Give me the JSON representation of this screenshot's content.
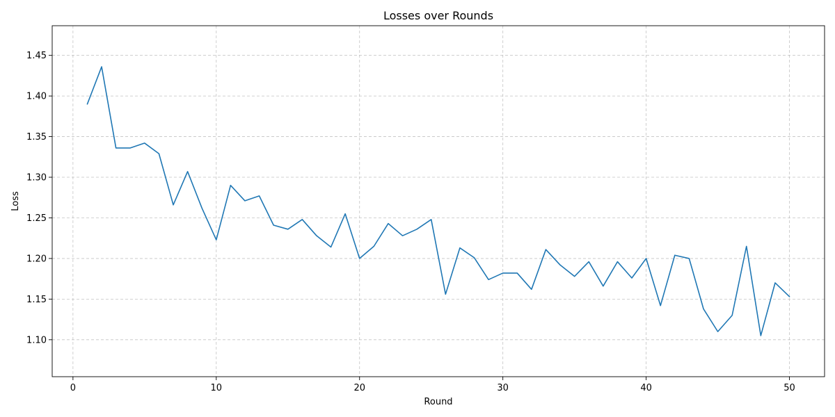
{
  "chart_data": {
    "type": "line",
    "title": "Losses over Rounds",
    "xlabel": "Round",
    "ylabel": "Loss",
    "xlim": [
      -1.45,
      52.45
    ],
    "ylim": [
      1.0545,
      1.4865
    ],
    "xticks": [
      0,
      10,
      20,
      30,
      40,
      50
    ],
    "yticks": [
      1.1,
      1.15,
      1.2,
      1.25,
      1.3,
      1.35,
      1.4,
      1.45
    ],
    "xtick_labels": [
      "0",
      "10",
      "20",
      "30",
      "40",
      "50"
    ],
    "ytick_labels": [
      "1.10",
      "1.15",
      "1.20",
      "1.25",
      "1.30",
      "1.35",
      "1.40",
      "1.45"
    ],
    "grid": true,
    "line_color": "#1f77b4",
    "series": [
      {
        "x": [
          1,
          2,
          3,
          4,
          5,
          6,
          7,
          8,
          9,
          10,
          11,
          12,
          13,
          14,
          15,
          16,
          17,
          18,
          19,
          20,
          21,
          22,
          23,
          24,
          25,
          26,
          27,
          28,
          29,
          30,
          31,
          32,
          33,
          34,
          35,
          36,
          37,
          38,
          39,
          40,
          41,
          42,
          43,
          44,
          45,
          46,
          47,
          48,
          49,
          50
        ],
        "values": [
          1.39,
          1.436,
          1.336,
          1.336,
          1.342,
          1.329,
          1.266,
          1.307,
          1.262,
          1.223,
          1.29,
          1.271,
          1.277,
          1.241,
          1.236,
          1.248,
          1.228,
          1.214,
          1.255,
          1.2,
          1.215,
          1.243,
          1.228,
          1.236,
          1.248,
          1.156,
          1.213,
          1.201,
          1.174,
          1.182,
          1.182,
          1.162,
          1.211,
          1.192,
          1.178,
          1.196,
          1.166,
          1.196,
          1.176,
          1.2,
          1.142,
          1.204,
          1.2,
          1.138,
          1.11,
          1.13,
          1.215,
          1.105,
          1.17,
          1.153
        ]
      }
    ]
  }
}
